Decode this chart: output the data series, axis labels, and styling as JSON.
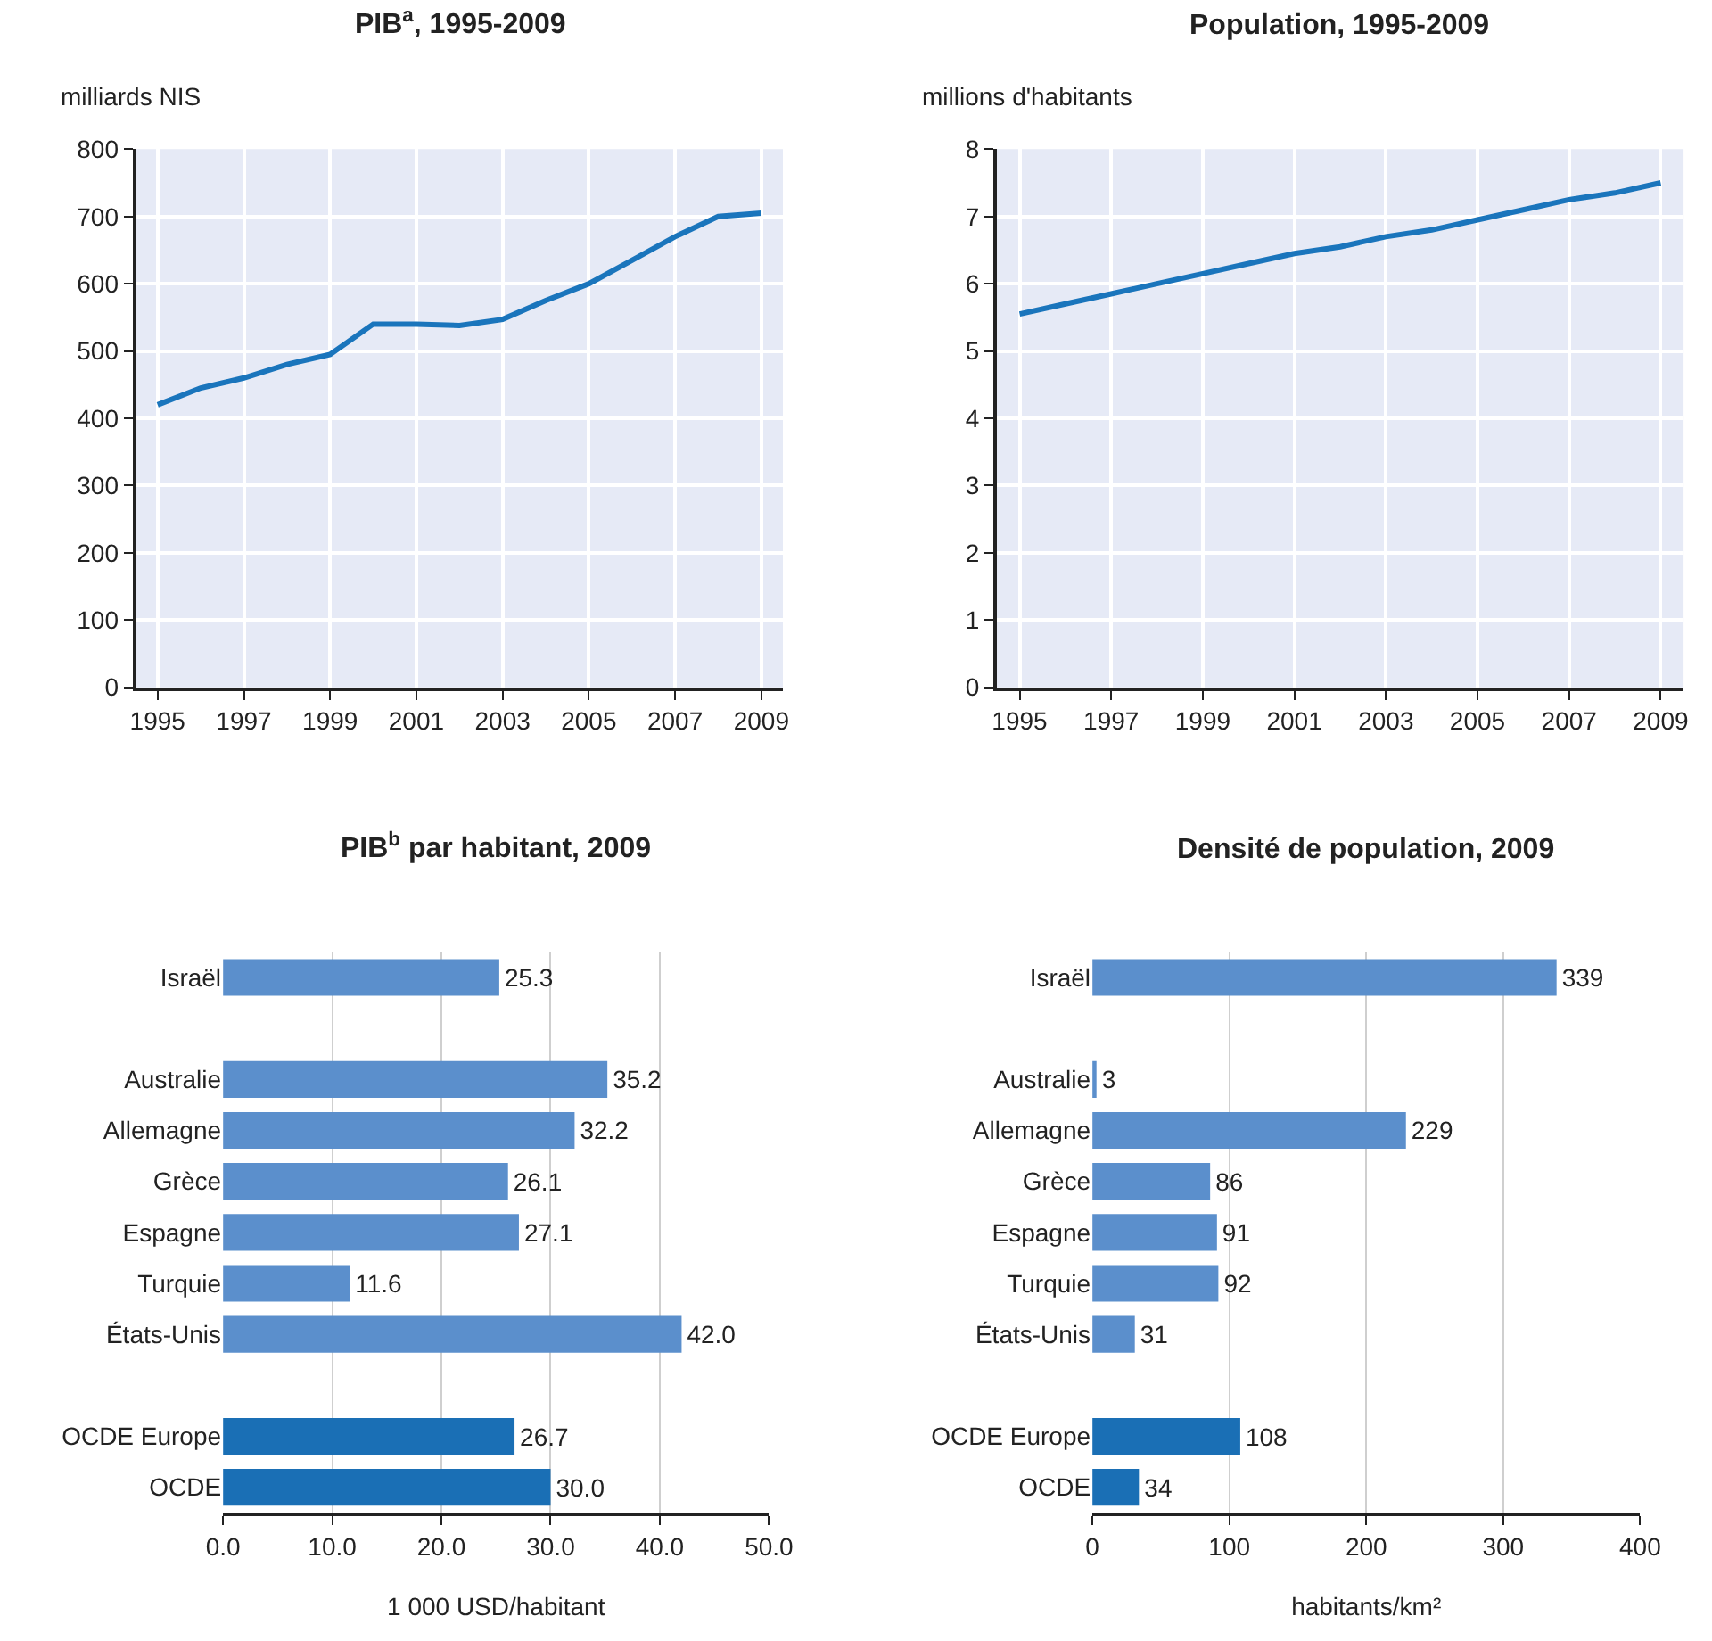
{
  "chart_data": [
    {
      "type": "line",
      "title": "PIB$^{a}$, 1995-2009",
      "ylabel": "milliards NIS",
      "x": [
        1995,
        1996,
        1997,
        1998,
        1999,
        2000,
        2001,
        2002,
        2003,
        2004,
        2005,
        2006,
        2007,
        2008,
        2009
      ],
      "series": [
        {
          "color": "#1a75bc",
          "values": [
            420,
            445,
            460,
            480,
            495,
            540,
            540,
            538,
            547,
            575,
            600,
            635,
            670,
            700,
            705
          ]
        }
      ],
      "xlim": [
        1994.5,
        2009.5
      ],
      "xticks": [
        1995,
        1997,
        1999,
        2001,
        2003,
        2005,
        2007,
        2009
      ],
      "ylim": [
        0,
        800
      ],
      "yticks": [
        0,
        100,
        200,
        300,
        400,
        500,
        600,
        700,
        800
      ],
      "grid": true,
      "marker": "none"
    },
    {
      "type": "line",
      "title": "Population, 1995-2009",
      "ylabel": "millions d'habitants",
      "x": [
        1995,
        1996,
        1997,
        1998,
        1999,
        2000,
        2001,
        2002,
        2003,
        2004,
        2005,
        2006,
        2007,
        2008,
        2009
      ],
      "series": [
        {
          "color": "#1a75bc",
          "values": [
            5.55,
            5.7,
            5.85,
            6.0,
            6.15,
            6.3,
            6.45,
            6.55,
            6.7,
            6.8,
            6.95,
            7.1,
            7.25,
            7.35,
            7.5
          ]
        }
      ],
      "xlim": [
        1994.5,
        2009.5
      ],
      "xticks": [
        1995,
        1997,
        1999,
        2001,
        2003,
        2005,
        2007,
        2009
      ],
      "ylim": [
        0,
        8
      ],
      "yticks": [
        0,
        1,
        2,
        3,
        4,
        5,
        6,
        7,
        8
      ],
      "grid": true,
      "marker": "none"
    },
    {
      "type": "bar",
      "orientation": "horizontal",
      "title": "PIB$^{b}$ par habitant, 2009",
      "xlabel": "1 000 USD/habitant",
      "categories": [
        "Israël",
        null,
        "Australie",
        "Allemagne",
        "Grèce",
        "Espagne",
        "Turquie",
        "États-Unis",
        null,
        "OCDE Europe",
        "OCDE"
      ],
      "values": [
        25.3,
        null,
        35.2,
        32.2,
        26.1,
        27.1,
        11.6,
        42.0,
        null,
        26.7,
        30.0
      ],
      "value_labels": [
        "25.3",
        null,
        "35.2",
        "32.2",
        "26.1",
        "27.1",
        "11.6",
        "42.0",
        null,
        "26.7",
        "30.0"
      ],
      "colors": [
        "#5b8fcc",
        null,
        "#5b8fcc",
        "#5b8fcc",
        "#5b8fcc",
        "#5b8fcc",
        "#5b8fcc",
        "#5b8fcc",
        null,
        "#1a6fb5",
        "#1a6fb5"
      ],
      "xlim": [
        0,
        50
      ],
      "xticks": [
        {
          "value": 0,
          "label": "0.0"
        },
        {
          "value": 10,
          "label": "10.0"
        },
        {
          "value": 20,
          "label": "20.0"
        },
        {
          "value": 30,
          "label": "30.0"
        },
        {
          "value": 40,
          "label": "40.0"
        },
        {
          "value": 50,
          "label": "50.0"
        }
      ],
      "grid": "x"
    },
    {
      "type": "bar",
      "orientation": "horizontal",
      "title": "Densité de population, 2009",
      "xlabel": "habitants/km²",
      "categories": [
        "Israël",
        null,
        "Australie",
        "Allemagne",
        "Grèce",
        "Espagne",
        "Turquie",
        "États-Unis",
        null,
        "OCDE Europe",
        "OCDE"
      ],
      "values": [
        339,
        null,
        3,
        229,
        86,
        91,
        92,
        31,
        null,
        108,
        34
      ],
      "data_labels": true,
      "colors": [
        "#5b8fcc",
        null,
        "#5b8fcc",
        "#5b8fcc",
        "#5b8fcc",
        "#5b8fcc",
        "#5b8fcc",
        "#5b8fcc",
        null,
        "#1a6fb5",
        "#1a6fb5"
      ],
      "xlim": [
        0,
        400
      ],
      "xticks": [
        0,
        100,
        200,
        300,
        400
      ],
      "grid": "x"
    }
  ]
}
